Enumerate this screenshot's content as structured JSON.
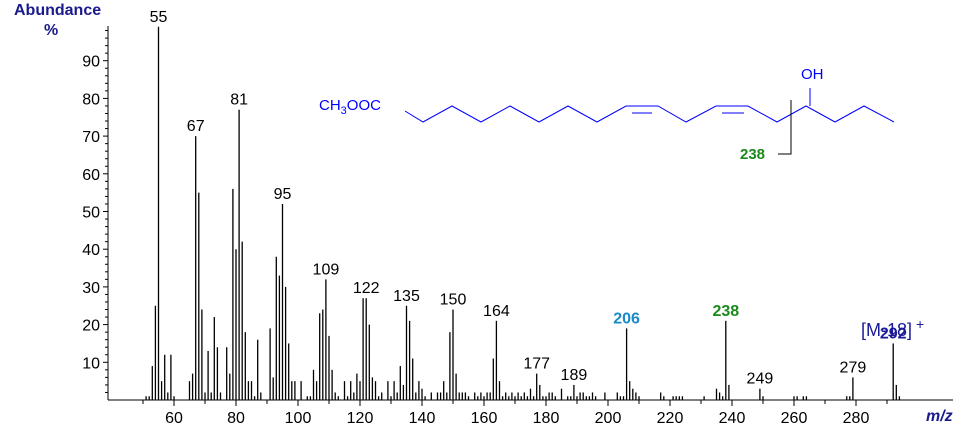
{
  "chart_data": {
    "type": "bar",
    "title": "",
    "ylabel": "Abundance %",
    "xlabel": "m/z",
    "xlim": [
      40,
      300
    ],
    "ylim": [
      0,
      100
    ],
    "x_ticks": [
      60,
      80,
      100,
      120,
      140,
      160,
      180,
      200,
      220,
      240,
      260,
      280
    ],
    "y_ticks": [
      10,
      20,
      30,
      40,
      50,
      60,
      70,
      80,
      90
    ],
    "peaks": [
      [
        51,
        1
      ],
      [
        52,
        1
      ],
      [
        53,
        9
      ],
      [
        54,
        25
      ],
      [
        55,
        99
      ],
      [
        56,
        5
      ],
      [
        57,
        12
      ],
      [
        58,
        2
      ],
      [
        59,
        12
      ],
      [
        60,
        1
      ],
      [
        65,
        5
      ],
      [
        66,
        7
      ],
      [
        67,
        70
      ],
      [
        68,
        55
      ],
      [
        69,
        24
      ],
      [
        70,
        2
      ],
      [
        71,
        13
      ],
      [
        72,
        2
      ],
      [
        73,
        22
      ],
      [
        74,
        14
      ],
      [
        75,
        2
      ],
      [
        77,
        14
      ],
      [
        78,
        7
      ],
      [
        79,
        56
      ],
      [
        80,
        40
      ],
      [
        81,
        77
      ],
      [
        82,
        42
      ],
      [
        83,
        18
      ],
      [
        84,
        5
      ],
      [
        85,
        5
      ],
      [
        86,
        1
      ],
      [
        87,
        16
      ],
      [
        88,
        2
      ],
      [
        91,
        19
      ],
      [
        92,
        6
      ],
      [
        93,
        38
      ],
      [
        94,
        33
      ],
      [
        95,
        52
      ],
      [
        96,
        30
      ],
      [
        97,
        15
      ],
      [
        98,
        5
      ],
      [
        99,
        5
      ],
      [
        101,
        5
      ],
      [
        103,
        1
      ],
      [
        104,
        1
      ],
      [
        105,
        8
      ],
      [
        106,
        5
      ],
      [
        107,
        23
      ],
      [
        108,
        24
      ],
      [
        109,
        32
      ],
      [
        110,
        17
      ],
      [
        111,
        8
      ],
      [
        112,
        2
      ],
      [
        113,
        1
      ],
      [
        115,
        5
      ],
      [
        116,
        1
      ],
      [
        117,
        5
      ],
      [
        118,
        2
      ],
      [
        119,
        7
      ],
      [
        120,
        5
      ],
      [
        121,
        27
      ],
      [
        122,
        27
      ],
      [
        123,
        20
      ],
      [
        124,
        6
      ],
      [
        125,
        5
      ],
      [
        126,
        1
      ],
      [
        127,
        2
      ],
      [
        129,
        5
      ],
      [
        130,
        1
      ],
      [
        131,
        5
      ],
      [
        132,
        2
      ],
      [
        133,
        9
      ],
      [
        134,
        4
      ],
      [
        135,
        25
      ],
      [
        136,
        21
      ],
      [
        137,
        11
      ],
      [
        138,
        2
      ],
      [
        139,
        5
      ],
      [
        140,
        3
      ],
      [
        141,
        1
      ],
      [
        143,
        2
      ],
      [
        145,
        2
      ],
      [
        146,
        2
      ],
      [
        147,
        5
      ],
      [
        148,
        2
      ],
      [
        149,
        18
      ],
      [
        150,
        24
      ],
      [
        151,
        7
      ],
      [
        152,
        2
      ],
      [
        153,
        2
      ],
      [
        154,
        2
      ],
      [
        155,
        1
      ],
      [
        157,
        2
      ],
      [
        158,
        1
      ],
      [
        159,
        2
      ],
      [
        160,
        1
      ],
      [
        161,
        2
      ],
      [
        162,
        2
      ],
      [
        163,
        11
      ],
      [
        164,
        21
      ],
      [
        165,
        5
      ],
      [
        166,
        1
      ],
      [
        167,
        2
      ],
      [
        168,
        1
      ],
      [
        169,
        2
      ],
      [
        170,
        1
      ],
      [
        171,
        2
      ],
      [
        172,
        1
      ],
      [
        173,
        2
      ],
      [
        174,
        1
      ],
      [
        175,
        3
      ],
      [
        176,
        1
      ],
      [
        177,
        7
      ],
      [
        178,
        4
      ],
      [
        179,
        1
      ],
      [
        180,
        1
      ],
      [
        181,
        2
      ],
      [
        182,
        2
      ],
      [
        183,
        1
      ],
      [
        185,
        3
      ],
      [
        187,
        1
      ],
      [
        188,
        1
      ],
      [
        189,
        4
      ],
      [
        190,
        1
      ],
      [
        191,
        2
      ],
      [
        192,
        2
      ],
      [
        193,
        1
      ],
      [
        194,
        1
      ],
      [
        195,
        2
      ],
      [
        196,
        1
      ],
      [
        199,
        2
      ],
      [
        203,
        2
      ],
      [
        204,
        1
      ],
      [
        205,
        1
      ],
      [
        206,
        19
      ],
      [
        207,
        5
      ],
      [
        208,
        3
      ],
      [
        209,
        2
      ],
      [
        210,
        1
      ],
      [
        217,
        2
      ],
      [
        218,
        1
      ],
      [
        221,
        1
      ],
      [
        222,
        1
      ],
      [
        223,
        1
      ],
      [
        224,
        1
      ],
      [
        231,
        1
      ],
      [
        235,
        3
      ],
      [
        236,
        2
      ],
      [
        237,
        1
      ],
      [
        238,
        21
      ],
      [
        239,
        4
      ],
      [
        249,
        3
      ],
      [
        250,
        1
      ],
      [
        260,
        1
      ],
      [
        261,
        1
      ],
      [
        263,
        1
      ],
      [
        264,
        1
      ],
      [
        277,
        1
      ],
      [
        278,
        1
      ],
      [
        279,
        6
      ],
      [
        292,
        15
      ],
      [
        293,
        4
      ],
      [
        294,
        1
      ]
    ],
    "peak_labels": [
      {
        "mz": 55,
        "text": "55",
        "color": "#000000"
      },
      {
        "mz": 67,
        "text": "67",
        "color": "#000000"
      },
      {
        "mz": 81,
        "text": "81",
        "color": "#000000"
      },
      {
        "mz": 95,
        "text": "95",
        "color": "#000000"
      },
      {
        "mz": 109,
        "text": "109",
        "color": "#000000"
      },
      {
        "mz": 122,
        "text": "122",
        "color": "#000000"
      },
      {
        "mz": 135,
        "text": "135",
        "color": "#000000"
      },
      {
        "mz": 150,
        "text": "150",
        "color": "#000000"
      },
      {
        "mz": 164,
        "text": "164",
        "color": "#000000"
      },
      {
        "mz": 177,
        "text": "177",
        "color": "#000000"
      },
      {
        "mz": 189,
        "text": "189",
        "color": "#000000"
      },
      {
        "mz": 206,
        "text": "206",
        "color": "#1a8ac8",
        "bold": true
      },
      {
        "mz": 238,
        "text": "238",
        "color": "#1a8a1a",
        "bold": true
      },
      {
        "mz": 249,
        "text": "249",
        "color": "#000000"
      },
      {
        "mz": 279,
        "text": "279",
        "color": "#000000"
      },
      {
        "mz": 292,
        "text": "292",
        "color": "#1a1a9a",
        "bold": true
      }
    ],
    "annotations": {
      "molecular_ion": "[M-18]",
      "molecular_ion_sup": "+",
      "structure_left": "CH3OOC",
      "structure_oh": "OH",
      "cleavage_label": "238"
    },
    "grid": false,
    "legend": "none"
  },
  "axis": {
    "ylabel_line1": "Abundance",
    "ylabel_line2": "%",
    "xlabel": "m/z"
  },
  "colors": {
    "axis_title": "#1a1a8a",
    "structure": "#0000ff",
    "ion206": "#1a8ac8",
    "ion238": "#1a8a1a",
    "ion292": "#1a1a9a",
    "bars": "#000000"
  }
}
